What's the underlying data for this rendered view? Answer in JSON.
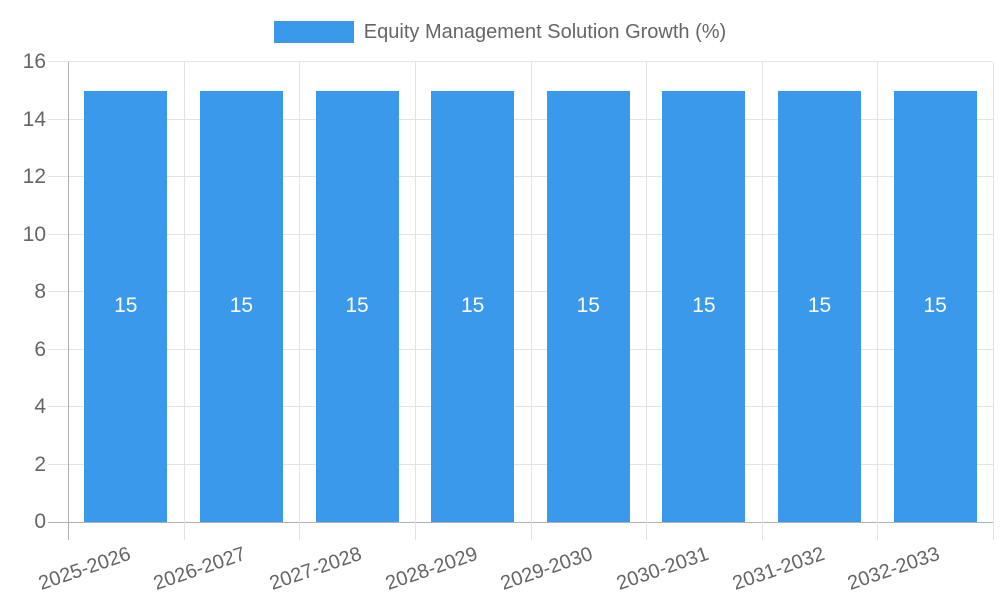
{
  "chart_data": {
    "type": "bar",
    "title": "Equity Management Solution Growth (%)",
    "categories": [
      "2025-2026",
      "2026-2027",
      "2027-2028",
      "2028-2029",
      "2029-2030",
      "2030-2031",
      "2031-2032",
      "2032-2033"
    ],
    "values": [
      15,
      15,
      15,
      15,
      15,
      15,
      15,
      15
    ],
    "bar_value_labels": [
      "15",
      "15",
      "15",
      "15",
      "15",
      "15",
      "15",
      "15"
    ],
    "xlabel": "",
    "ylabel": "",
    "ylim": [
      0,
      16
    ],
    "yticks": [
      0,
      2,
      4,
      6,
      8,
      10,
      12,
      14,
      16
    ],
    "grid": true,
    "legend_position": "top",
    "colors": {
      "bar": "#3b99ec",
      "value_label": "#ffffff",
      "grid_line": "#e3e3e3",
      "axis_line": "#b0b0b0",
      "tick_text": "#666666"
    }
  }
}
